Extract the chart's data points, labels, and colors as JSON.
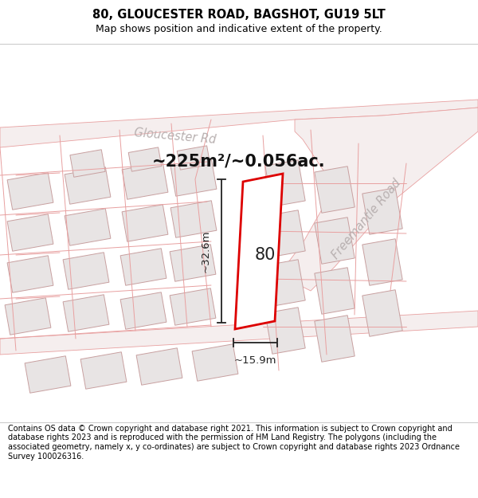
{
  "title_line1": "80, GLOUCESTER ROAD, BAGSHOT, GU19 5LT",
  "title_line2": "Map shows position and indicative extent of the property.",
  "area_text": "~225m²/~0.056ac.",
  "dim_height": "~32.6m",
  "dim_width": "~15.9m",
  "property_number": "80",
  "road_name_1": "Gloucester Rd",
  "road_name_2": "Freemantle Road",
  "footer_text": "Contains OS data © Crown copyright and database right 2021. This information is subject to Crown copyright and database rights 2023 and is reproduced with the permission of HM Land Registry. The polygons (including the associated geometry, namely x, y co-ordinates) are subject to Crown copyright and database rights 2023 Ordnance Survey 100026316.",
  "map_bg": "#f9f5f5",
  "road_fill": "#f2dede",
  "road_outline": "#e8a0a0",
  "parcel_outline": "#e8a0a0",
  "building_fill": "#e8e4e4",
  "building_outline": "#c8a0a0",
  "highlight_color": "#dd0000",
  "dim_color": "#222222",
  "road_label_color": "#aaaaaa",
  "title_color": "#000000",
  "footer_color": "#000000"
}
